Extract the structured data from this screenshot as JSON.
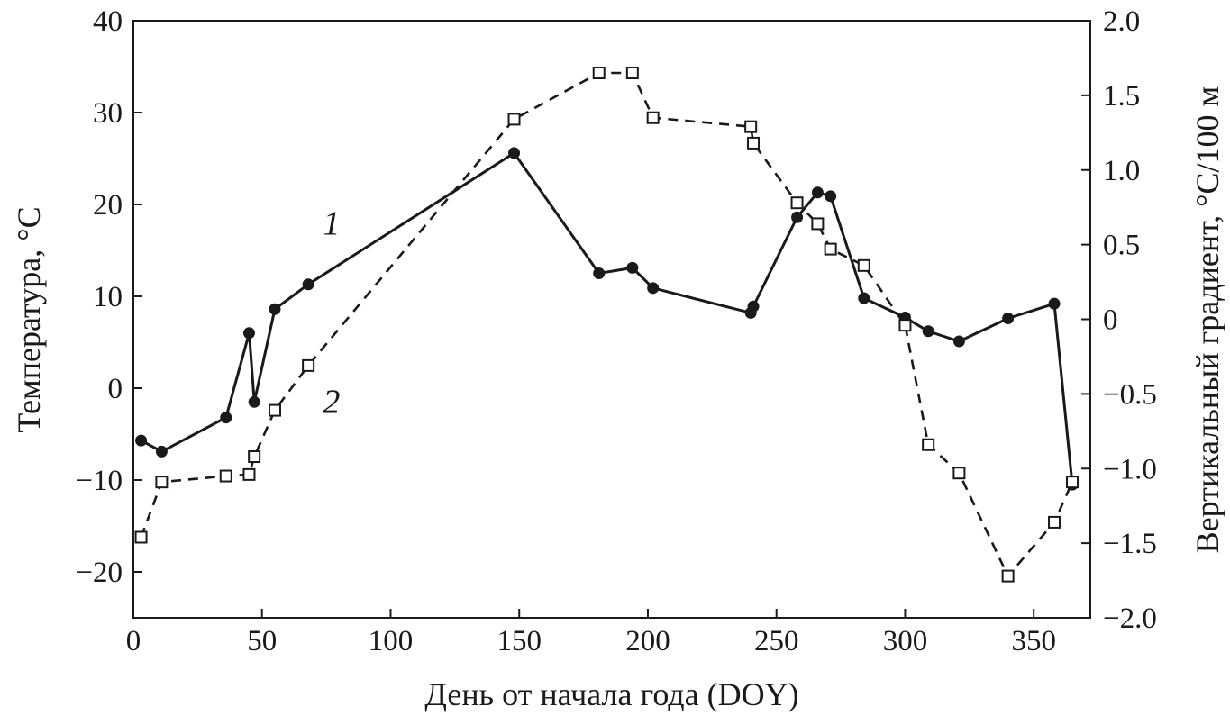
{
  "chart_data": {
    "type": "line",
    "xlabel": "День от начала года (DOY)",
    "ylabel": "Температура, °С",
    "y2label": "Вертикальный градиент, °С/100 м",
    "xlim": [
      0,
      372
    ],
    "ylim": [
      -25,
      40
    ],
    "y2lim": [
      -2.0,
      2.0
    ],
    "xticks": [
      0,
      50,
      100,
      150,
      200,
      250,
      300,
      350
    ],
    "xtick_labels": [
      "0",
      "50",
      "100",
      "150",
      "200",
      "250",
      "300",
      "350"
    ],
    "yticks": [
      40,
      30,
      20,
      10,
      0,
      -10,
      -20
    ],
    "ytick_labels": [
      "40",
      "30",
      "20",
      "10",
      "0",
      "−10",
      "−20"
    ],
    "y2ticks": [
      2.0,
      1.5,
      1.0,
      0.5,
      0,
      -0.5,
      -1.0,
      -1.5,
      -2.0
    ],
    "y2tick_labels": [
      "2.0",
      "1.5",
      "1.0",
      "0.5",
      "0",
      "−0.5",
      "−1.0",
      "−1.5",
      "−2.0"
    ],
    "series": [
      {
        "name": "1",
        "axis": "left",
        "style": "solid-filled-circle",
        "x": [
          3,
          11,
          36,
          45,
          47,
          55,
          68,
          148,
          181,
          194,
          202,
          240,
          241,
          258,
          266,
          271,
          284,
          300,
          309,
          321,
          340,
          358,
          365
        ],
        "y": [
          -5.7,
          -6.9,
          -3.2,
          6.0,
          -1.5,
          8.6,
          11.3,
          25.6,
          12.5,
          13.1,
          10.9,
          8.2,
          8.9,
          18.6,
          21.3,
          20.9,
          9.8,
          7.7,
          6.2,
          5.1,
          7.6,
          9.2,
          -10.5
        ]
      },
      {
        "name": "2",
        "axis": "right",
        "style": "dashed-open-square",
        "x": [
          3,
          11,
          36,
          45,
          47,
          55,
          68,
          148,
          181,
          194,
          202,
          240,
          241,
          258,
          266,
          271,
          284,
          300,
          309,
          321,
          340,
          358,
          365
        ],
        "y": [
          -1.46,
          -1.09,
          -1.05,
          -1.04,
          -0.92,
          -0.61,
          -0.31,
          1.34,
          1.65,
          1.65,
          1.35,
          1.29,
          1.18,
          0.78,
          0.64,
          0.47,
          0.36,
          -0.04,
          -0.84,
          -1.03,
          -1.72,
          -1.36,
          -1.09
        ]
      }
    ],
    "annotations": [
      {
        "text": "1",
        "x": 77,
        "y": 18
      },
      {
        "text": "2",
        "x": 77,
        "y": -0.55,
        "axis": "right"
      }
    ]
  }
}
